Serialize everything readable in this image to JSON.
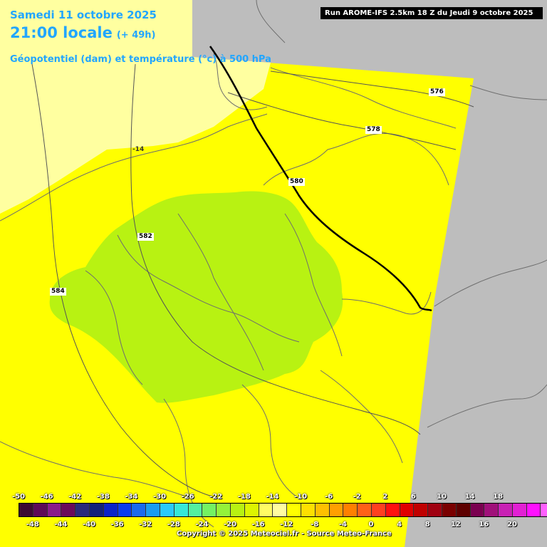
{
  "header": {
    "date": "Samedi 11 octobre 2025",
    "time": "21:00 locale",
    "lead": "(+ 49h)",
    "subtitle": "Géopotentiel (dam) et température (°c) à 500 hPa",
    "run": "Run AROME-IFS 2.5km 18 Z du Jeudi 9 octobre 2025"
  },
  "isolines": [
    {
      "id": "iso-576",
      "label": "576"
    },
    {
      "id": "iso-578",
      "label": "578"
    },
    {
      "id": "iso-580",
      "label": "580"
    },
    {
      "id": "iso-582",
      "label": "582"
    },
    {
      "id": "iso-584",
      "label": "584"
    }
  ],
  "isotherm_label": "-14",
  "legend": {
    "top_labels": [
      "-50",
      "-46",
      "-42",
      "-38",
      "-34",
      "-30",
      "-26",
      "-22",
      "-18",
      "-14",
      "-10",
      "-6",
      "-2",
      "2",
      "6",
      "10",
      "14",
      "18"
    ],
    "bottom_labels": [
      "-48",
      "-44",
      "-40",
      "-36",
      "-32",
      "-28",
      "-24",
      "-20",
      "-16",
      "-12",
      "-8",
      "-4",
      "0",
      "4",
      "8",
      "12",
      "16",
      "20"
    ],
    "colors": [
      "#3d0a32",
      "#5e0a57",
      "#8a1a8a",
      "#6a0a5a",
      "#2a2a7a",
      "#13237a",
      "#0b24c8",
      "#0a3cf0",
      "#1a6aee",
      "#1a9cf0",
      "#2acafa",
      "#36e8d8",
      "#54f0a0",
      "#74f262",
      "#94f23a",
      "#b8f212",
      "#ddf500",
      "#fffc64",
      "#fffca0",
      "#ffff00",
      "#ffe000",
      "#ffc000",
      "#ffa000",
      "#ff8000",
      "#ff6018",
      "#ff4020",
      "#ff1010",
      "#e00000",
      "#c00000",
      "#a00010",
      "#7a0000",
      "#5e0000",
      "#7a0050",
      "#a0107a",
      "#c820b4",
      "#e220d4",
      "#ff10ff",
      "#ff60ff",
      "#ff90f8"
    ]
  },
  "copyright": "Copyright © 2025 Meteociel.fr - Source Meteo-France"
}
